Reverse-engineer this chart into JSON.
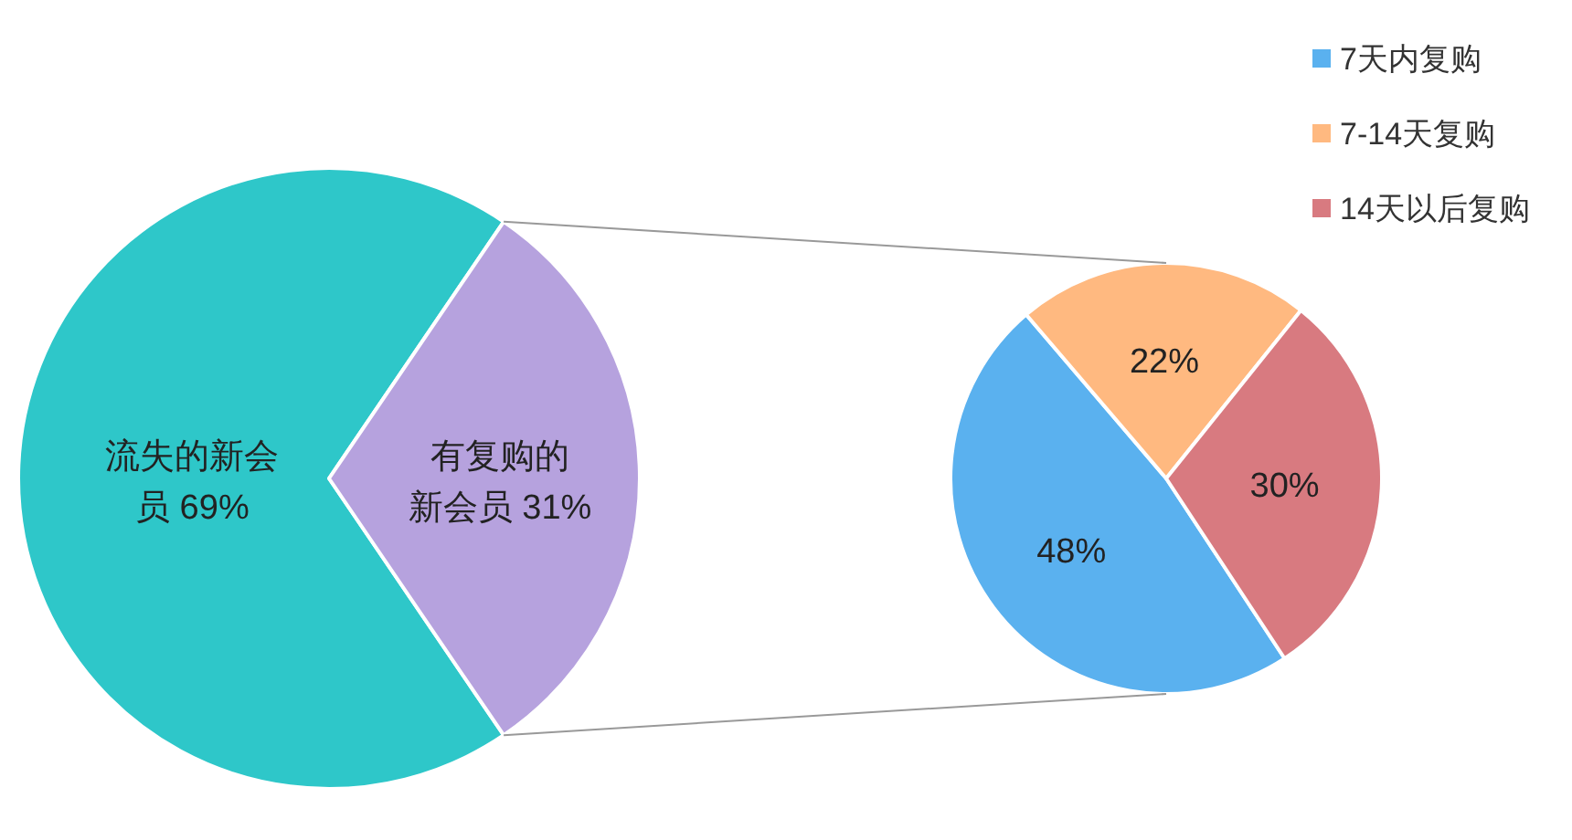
{
  "chart_data": [
    {
      "type": "pie",
      "categories": [
        "流失的新会员",
        "有复购的新会员"
      ],
      "values": [
        69,
        31
      ],
      "colors": [
        "#2ec7c9",
        "#b6a2de"
      ],
      "value_labels": [
        "69%",
        "31%"
      ],
      "legend": false
    },
    {
      "type": "pie",
      "categories": [
        "7天内复购",
        "7-14天复购",
        "14天以后复购"
      ],
      "values": [
        48,
        22,
        30
      ],
      "colors": [
        "#5ab1ef",
        "#ffb980",
        "#d87a80"
      ],
      "value_labels": [
        "48%",
        "22%",
        "30%"
      ],
      "legend": "top right"
    }
  ]
}
